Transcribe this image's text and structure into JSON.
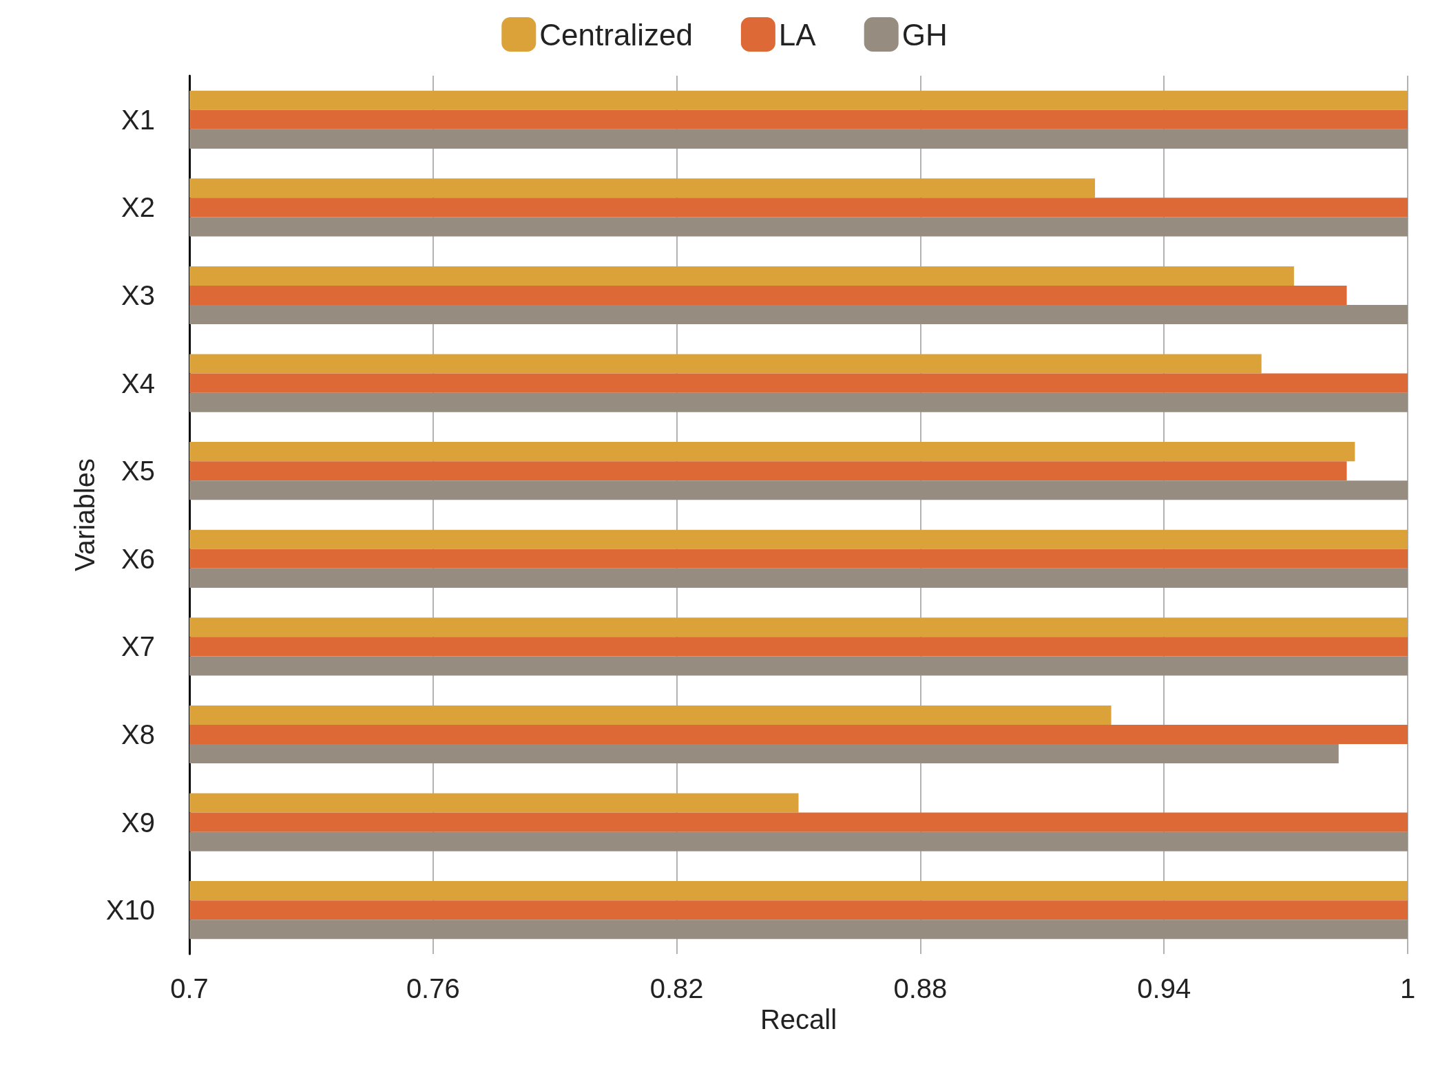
{
  "chart_data": {
    "type": "bar",
    "orientation": "horizontal",
    "xlabel": "Recall",
    "ylabel": "Variables",
    "categories": [
      "X1",
      "X2",
      "X3",
      "X4",
      "X5",
      "X6",
      "X7",
      "X8",
      "X9",
      "X10"
    ],
    "series": [
      {
        "name": "Centralized",
        "color": "#dba23a",
        "values": [
          1.0,
          0.923,
          0.972,
          0.964,
          0.987,
          1.0,
          1.0,
          0.927,
          0.85,
          1.0
        ]
      },
      {
        "name": "LA",
        "color": "#dd6a36",
        "values": [
          1.0,
          1.0,
          0.985,
          1.0,
          0.985,
          1.0,
          1.0,
          1.0,
          1.0,
          1.0
        ]
      },
      {
        "name": "GH",
        "color": "#968d80",
        "values": [
          1.0,
          1.0,
          1.0,
          1.0,
          1.0,
          1.0,
          1.0,
          0.983,
          1.0,
          1.0
        ]
      }
    ],
    "xlim": [
      0.7,
      1.0
    ],
    "xticks": [
      0.7,
      0.76,
      0.82,
      0.88,
      0.94,
      1
    ],
    "grid": "x",
    "legend": "top"
  }
}
